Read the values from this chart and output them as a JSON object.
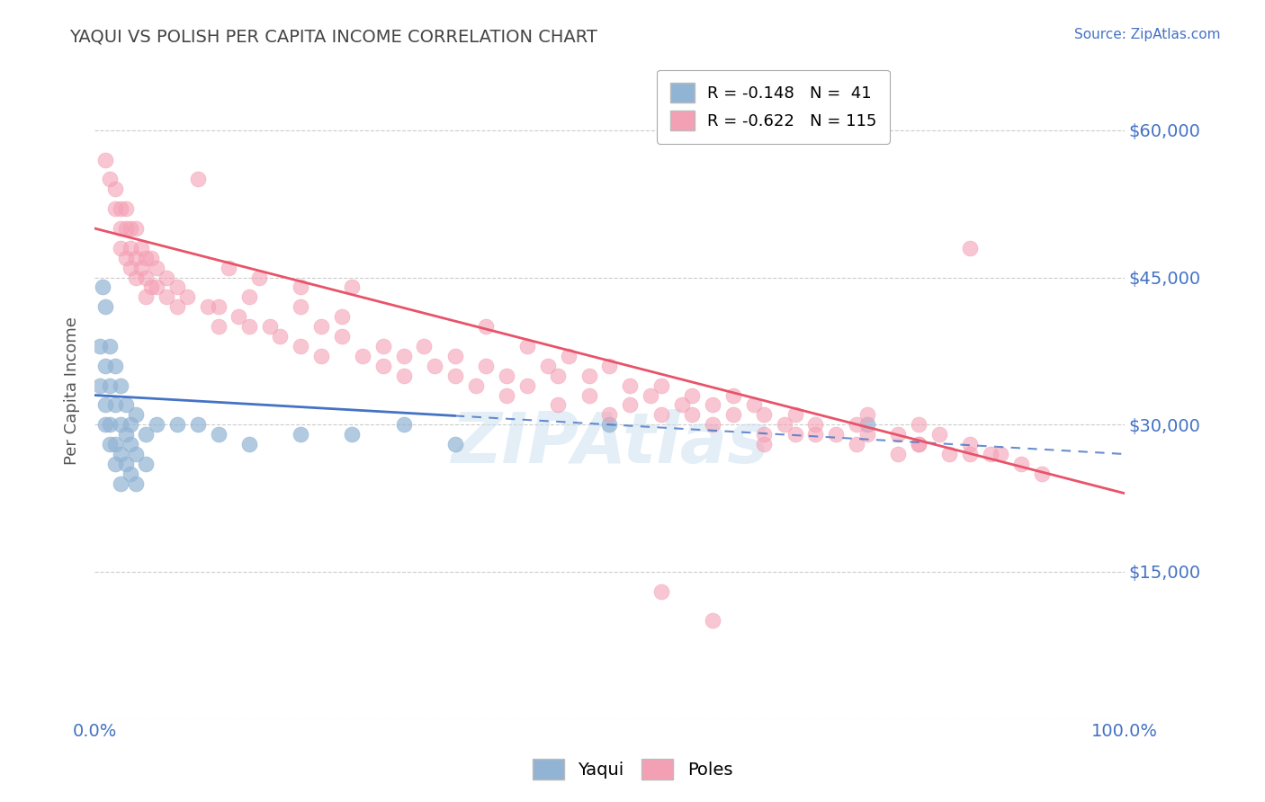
{
  "title": "YAQUI VS POLISH PER CAPITA INCOME CORRELATION CHART",
  "source": "Source: ZipAtlas.com",
  "ylabel": "Per Capita Income",
  "yticks": [
    0,
    15000,
    30000,
    45000,
    60000
  ],
  "ytick_labels": [
    "",
    "$15,000",
    "$30,000",
    "$45,000",
    "$60,000"
  ],
  "xlim": [
    0,
    100
  ],
  "ylim": [
    0,
    67000
  ],
  "watermark": "ZIPAtlas",
  "background_color": "#ffffff",
  "grid_color": "#cccccc",
  "title_color": "#444444",
  "axis_label_color": "#555555",
  "ytick_color": "#4472c4",
  "xtick_color": "#4472c4",
  "yaqui_color": "#92b4d4",
  "poles_color": "#f4a0b4",
  "yaqui_line_color": "#4472c4",
  "poles_line_color": "#e8536a",
  "yaqui_scatter": [
    [
      0.5,
      38000
    ],
    [
      0.5,
      34000
    ],
    [
      0.8,
      44000
    ],
    [
      1.0,
      42000
    ],
    [
      1.0,
      36000
    ],
    [
      1.0,
      32000
    ],
    [
      1.0,
      30000
    ],
    [
      1.5,
      38000
    ],
    [
      1.5,
      34000
    ],
    [
      1.5,
      30000
    ],
    [
      1.5,
      28000
    ],
    [
      2.0,
      36000
    ],
    [
      2.0,
      32000
    ],
    [
      2.0,
      28000
    ],
    [
      2.0,
      26000
    ],
    [
      2.5,
      34000
    ],
    [
      2.5,
      30000
    ],
    [
      2.5,
      27000
    ],
    [
      2.5,
      24000
    ],
    [
      3.0,
      32000
    ],
    [
      3.0,
      29000
    ],
    [
      3.0,
      26000
    ],
    [
      3.5,
      30000
    ],
    [
      3.5,
      28000
    ],
    [
      3.5,
      25000
    ],
    [
      4.0,
      31000
    ],
    [
      4.0,
      27000
    ],
    [
      4.0,
      24000
    ],
    [
      5.0,
      29000
    ],
    [
      5.0,
      26000
    ],
    [
      6.0,
      30000
    ],
    [
      8.0,
      30000
    ],
    [
      10.0,
      30000
    ],
    [
      12.0,
      29000
    ],
    [
      15.0,
      28000
    ],
    [
      20.0,
      29000
    ],
    [
      25.0,
      29000
    ],
    [
      30.0,
      30000
    ],
    [
      35.0,
      28000
    ],
    [
      50.0,
      30000
    ],
    [
      75.0,
      30000
    ]
  ],
  "poles_scatter": [
    [
      1.0,
      57000
    ],
    [
      1.5,
      55000
    ],
    [
      2.0,
      54000
    ],
    [
      2.0,
      52000
    ],
    [
      2.5,
      52000
    ],
    [
      2.5,
      50000
    ],
    [
      2.5,
      48000
    ],
    [
      3.0,
      52000
    ],
    [
      3.0,
      50000
    ],
    [
      3.0,
      47000
    ],
    [
      3.5,
      50000
    ],
    [
      3.5,
      48000
    ],
    [
      3.5,
      46000
    ],
    [
      4.0,
      50000
    ],
    [
      4.0,
      47000
    ],
    [
      4.0,
      45000
    ],
    [
      4.5,
      48000
    ],
    [
      4.5,
      46000
    ],
    [
      5.0,
      47000
    ],
    [
      5.0,
      45000
    ],
    [
      5.0,
      43000
    ],
    [
      5.5,
      47000
    ],
    [
      5.5,
      44000
    ],
    [
      6.0,
      46000
    ],
    [
      6.0,
      44000
    ],
    [
      7.0,
      45000
    ],
    [
      7.0,
      43000
    ],
    [
      8.0,
      44000
    ],
    [
      8.0,
      42000
    ],
    [
      9.0,
      43000
    ],
    [
      10.0,
      55000
    ],
    [
      11.0,
      42000
    ],
    [
      12.0,
      42000
    ],
    [
      12.0,
      40000
    ],
    [
      13.0,
      46000
    ],
    [
      14.0,
      41000
    ],
    [
      15.0,
      40000
    ],
    [
      15.0,
      43000
    ],
    [
      16.0,
      45000
    ],
    [
      17.0,
      40000
    ],
    [
      18.0,
      39000
    ],
    [
      20.0,
      42000
    ],
    [
      20.0,
      38000
    ],
    [
      20.0,
      44000
    ],
    [
      22.0,
      40000
    ],
    [
      22.0,
      37000
    ],
    [
      24.0,
      39000
    ],
    [
      24.0,
      41000
    ],
    [
      25.0,
      44000
    ],
    [
      26.0,
      37000
    ],
    [
      28.0,
      38000
    ],
    [
      28.0,
      36000
    ],
    [
      30.0,
      37000
    ],
    [
      30.0,
      35000
    ],
    [
      32.0,
      38000
    ],
    [
      33.0,
      36000
    ],
    [
      35.0,
      37000
    ],
    [
      35.0,
      35000
    ],
    [
      37.0,
      34000
    ],
    [
      38.0,
      40000
    ],
    [
      38.0,
      36000
    ],
    [
      40.0,
      35000
    ],
    [
      40.0,
      33000
    ],
    [
      42.0,
      38000
    ],
    [
      42.0,
      34000
    ],
    [
      44.0,
      36000
    ],
    [
      45.0,
      35000
    ],
    [
      45.0,
      32000
    ],
    [
      46.0,
      37000
    ],
    [
      48.0,
      35000
    ],
    [
      48.0,
      33000
    ],
    [
      50.0,
      36000
    ],
    [
      50.0,
      31000
    ],
    [
      52.0,
      34000
    ],
    [
      52.0,
      32000
    ],
    [
      54.0,
      33000
    ],
    [
      55.0,
      34000
    ],
    [
      55.0,
      31000
    ],
    [
      57.0,
      32000
    ],
    [
      58.0,
      33000
    ],
    [
      58.0,
      31000
    ],
    [
      60.0,
      32000
    ],
    [
      60.0,
      30000
    ],
    [
      62.0,
      33000
    ],
    [
      62.0,
      31000
    ],
    [
      64.0,
      32000
    ],
    [
      65.0,
      31000
    ],
    [
      65.0,
      29000
    ],
    [
      67.0,
      30000
    ],
    [
      68.0,
      31000
    ],
    [
      68.0,
      29000
    ],
    [
      70.0,
      30000
    ],
    [
      72.0,
      29000
    ],
    [
      74.0,
      30000
    ],
    [
      74.0,
      28000
    ],
    [
      75.0,
      31000
    ],
    [
      78.0,
      29000
    ],
    [
      78.0,
      27000
    ],
    [
      80.0,
      30000
    ],
    [
      80.0,
      28000
    ],
    [
      82.0,
      29000
    ],
    [
      83.0,
      27000
    ],
    [
      85.0,
      28000
    ],
    [
      85.0,
      48000
    ],
    [
      87.0,
      27000
    ],
    [
      88.0,
      27000
    ],
    [
      90.0,
      26000
    ],
    [
      92.0,
      25000
    ],
    [
      55.0,
      13000
    ],
    [
      60.0,
      10000
    ],
    [
      65.0,
      28000
    ],
    [
      70.0,
      29000
    ],
    [
      75.0,
      29000
    ],
    [
      80.0,
      28000
    ],
    [
      85.0,
      27000
    ]
  ],
  "yaqui_line_x_solid_end": 35,
  "poles_line_intercept": 50000,
  "poles_line_slope": -270,
  "yaqui_line_intercept": 33000,
  "yaqui_line_slope": -60
}
